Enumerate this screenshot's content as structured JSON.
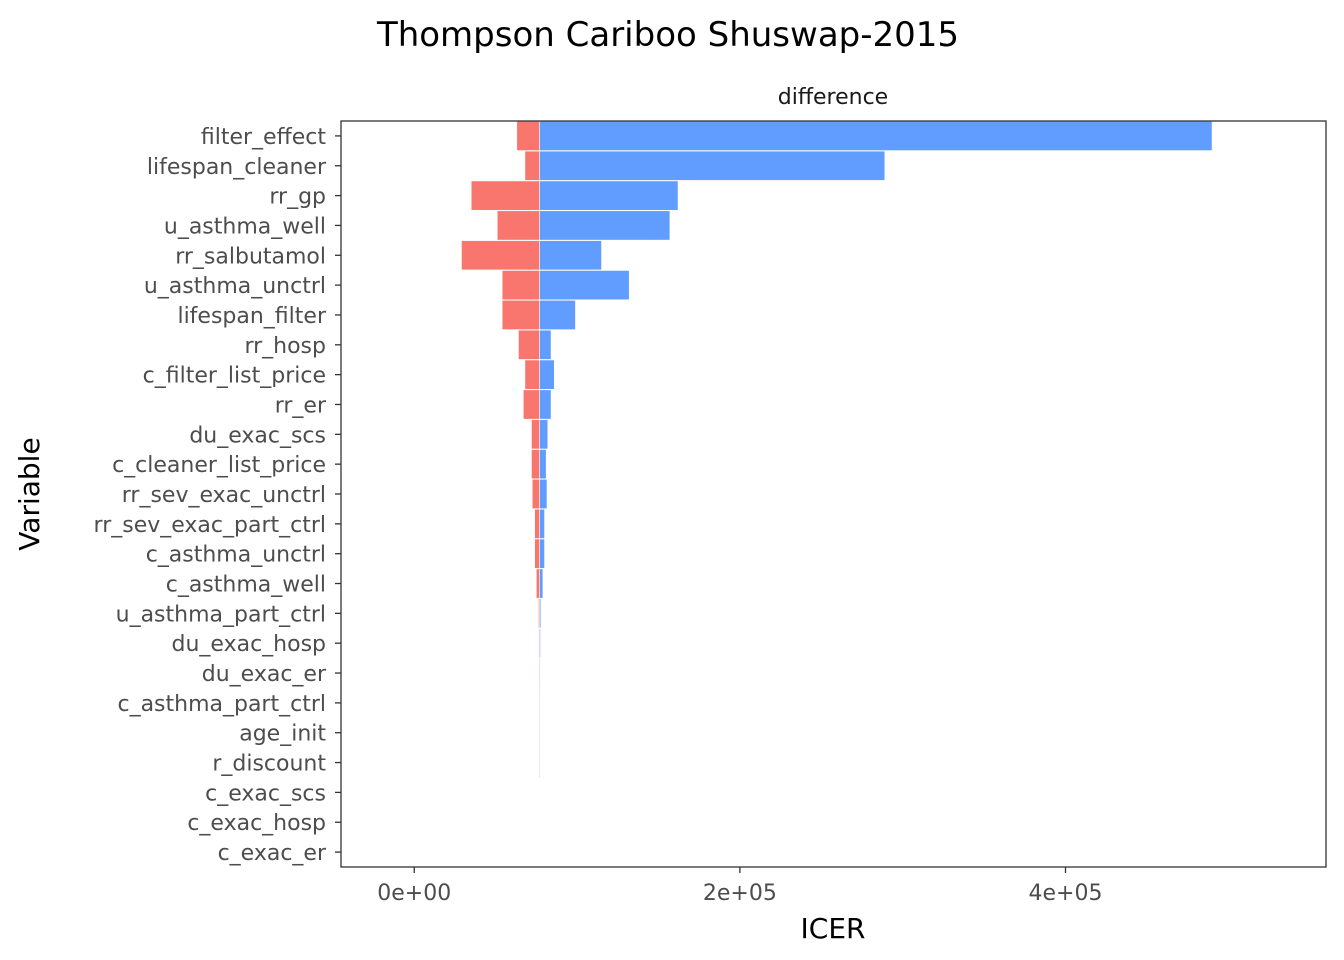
{
  "chart_data": {
    "type": "bar",
    "orientation": "horizontal",
    "title": "Thompson Cariboo Shuswap-2015",
    "facet_label": "difference",
    "xlabel": "ICER",
    "ylabel": "Variable",
    "xlim": [
      -45000,
      560000
    ],
    "xticks": [
      0,
      200000,
      400000
    ],
    "xtick_labels": [
      "0e+00",
      "2e+05",
      "4e+05"
    ],
    "baseline": 77000,
    "grid": false,
    "colors": {
      "low": "#F8766D",
      "high": "#619CFF"
    },
    "categories": [
      "filter_effect",
      "lifespan_cleaner",
      "rr_gp",
      "u_asthma_well",
      "rr_salbutamol",
      "u_asthma_unctrl",
      "lifespan_filter",
      "rr_hosp",
      "c_filter_list_price",
      "rr_er",
      "du_exac_scs",
      "c_cleaner_list_price",
      "rr_sev_exac_unctrl",
      "rr_sev_exac_part_ctrl",
      "c_asthma_unctrl",
      "c_asthma_well",
      "u_asthma_part_ctrl",
      "du_exac_hosp",
      "du_exac_er",
      "c_asthma_part_ctrl",
      "age_init",
      "r_discount",
      "c_exac_scs",
      "c_exac_hosp",
      "c_exac_er"
    ],
    "low_values": [
      63000,
      68000,
      35000,
      51000,
      29000,
      54000,
      54000,
      64000,
      68000,
      67000,
      72000,
      72000,
      72500,
      74000,
      74000,
      75000,
      76300,
      76500,
      76600,
      77000,
      77000,
      77000,
      null,
      null,
      null
    ],
    "high_values": [
      490000,
      289000,
      162000,
      157000,
      115000,
      132000,
      99000,
      84000,
      86000,
      84000,
      82000,
      81000,
      81500,
      80000,
      80000,
      79000,
      77700,
      77500,
      77400,
      77000,
      77000,
      77000,
      null,
      null,
      null
    ]
  }
}
